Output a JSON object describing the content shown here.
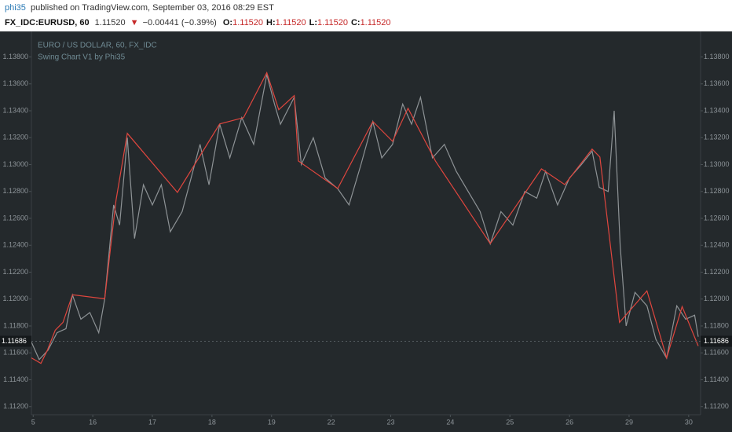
{
  "header": {
    "author": "phi35",
    "published": "published on TradingView.com, September 03, 2016 08:29 EST",
    "symbol": "FX_IDC:EURUSD, 60",
    "price": "1.11520",
    "arrow": "▼",
    "change": "−0.00441 (−0.39%)",
    "ohlc": [
      {
        "label": "O:",
        "value": "1.11520"
      },
      {
        "label": "H:",
        "value": "1.11520"
      },
      {
        "label": "L:",
        "value": "1.11520"
      },
      {
        "label": "C:",
        "value": "1.11520"
      }
    ]
  },
  "chart_data": {
    "type": "line",
    "title": "EURO / US DOLLAR, 60, FX_IDC",
    "subtitle": "Swing Chart V1 by Phi35",
    "xlim": [
      -0.03,
      11.2
    ],
    "xticks": [
      {
        "value": 0,
        "label": "5"
      },
      {
        "value": 1,
        "label": "16"
      },
      {
        "value": 2,
        "label": "17"
      },
      {
        "value": 3,
        "label": "18"
      },
      {
        "value": 4,
        "label": "19"
      },
      {
        "value": 5,
        "label": "22"
      },
      {
        "value": 6,
        "label": "23"
      },
      {
        "value": 7,
        "label": "24"
      },
      {
        "value": 8,
        "label": "25"
      },
      {
        "value": 9,
        "label": "26"
      },
      {
        "value": 10,
        "label": "29"
      },
      {
        "value": 11,
        "label": "30"
      }
    ],
    "ylim": [
      1.1114,
      1.1399
    ],
    "yticks": [
      {
        "value": 1.112,
        "label": "1.11200"
      },
      {
        "value": 1.114,
        "label": "1.11400"
      },
      {
        "value": 1.116,
        "label": "1.11600"
      },
      {
        "value": 1.118,
        "label": "1.11800"
      },
      {
        "value": 1.12,
        "label": "1.12000"
      },
      {
        "value": 1.122,
        "label": "1.12200"
      },
      {
        "value": 1.124,
        "label": "1.12400"
      },
      {
        "value": 1.126,
        "label": "1.12600"
      },
      {
        "value": 1.128,
        "label": "1.12800"
      },
      {
        "value": 1.13,
        "label": "1.13000"
      },
      {
        "value": 1.132,
        "label": "1.13200"
      },
      {
        "value": 1.134,
        "label": "1.13400"
      },
      {
        "value": 1.136,
        "label": "1.13600"
      },
      {
        "value": 1.138,
        "label": "1.13800"
      }
    ],
    "last_price": 1.11686,
    "series": [
      {
        "color": "#8e9396",
        "x": [
          -0.03,
          0.1,
          0.25,
          0.4,
          0.55,
          0.66,
          0.8,
          0.95,
          1.1,
          1.2,
          1.35,
          1.45,
          1.58,
          1.7,
          1.85,
          2.0,
          2.15,
          2.3,
          2.5,
          2.65,
          2.8,
          2.95,
          3.13,
          3.3,
          3.5,
          3.7,
          3.92,
          4.05,
          4.15,
          4.38,
          4.5,
          4.7,
          4.9,
          5.11,
          5.3,
          5.5,
          5.7,
          5.85,
          6.03,
          6.2,
          6.35,
          6.5,
          6.7,
          6.9,
          7.1,
          7.3,
          7.5,
          7.67,
          7.85,
          8.05,
          8.25,
          8.45,
          8.6,
          8.8,
          9.0,
          9.2,
          9.38,
          9.5,
          9.65,
          9.75,
          9.85,
          9.95,
          10.1,
          10.3,
          10.45,
          10.63,
          10.8,
          10.95,
          11.1,
          11.16
        ],
        "values": [
          1.1168,
          1.1155,
          1.1162,
          1.1175,
          1.1178,
          1.1203,
          1.1185,
          1.119,
          1.1175,
          1.12,
          1.127,
          1.1255,
          1.132,
          1.1245,
          1.1285,
          1.127,
          1.1285,
          1.125,
          1.1265,
          1.129,
          1.1315,
          1.1285,
          1.133,
          1.1305,
          1.1335,
          1.1315,
          1.1367,
          1.1345,
          1.133,
          1.135,
          1.13,
          1.132,
          1.129,
          1.1282,
          1.127,
          1.13,
          1.1332,
          1.1305,
          1.1315,
          1.1345,
          1.133,
          1.135,
          1.1305,
          1.1315,
          1.1295,
          1.128,
          1.1265,
          1.1241,
          1.1265,
          1.1255,
          1.128,
          1.1275,
          1.1295,
          1.127,
          1.129,
          1.13,
          1.131,
          1.1283,
          1.128,
          1.134,
          1.124,
          1.118,
          1.1205,
          1.1195,
          1.117,
          1.1156,
          1.1195,
          1.1185,
          1.1188,
          1.1172
        ]
      },
      {
        "color": "#e0463e",
        "x": [
          -0.03,
          0.13,
          0.24,
          0.37,
          0.5,
          0.66,
          1.2,
          1.39,
          1.58,
          2.42,
          3.13,
          3.53,
          3.92,
          4.12,
          4.38,
          4.45,
          5.11,
          5.7,
          6.03,
          6.29,
          6.75,
          7.67,
          8.53,
          8.92,
          9.38,
          9.51,
          9.84,
          10.3,
          10.63,
          10.89,
          11.16
        ],
        "values": [
          1.11563,
          1.11522,
          1.11622,
          1.11768,
          1.11827,
          1.12032,
          1.12002,
          1.12734,
          1.13232,
          1.12793,
          1.13302,
          1.13349,
          1.13683,
          1.13408,
          1.13513,
          1.13027,
          1.12822,
          1.1332,
          1.13173,
          1.13419,
          1.13027,
          1.12412,
          1.12968,
          1.12851,
          1.13115,
          1.13056,
          1.11827,
          1.12061,
          1.11563,
          1.11944,
          1.11651
        ]
      }
    ]
  }
}
